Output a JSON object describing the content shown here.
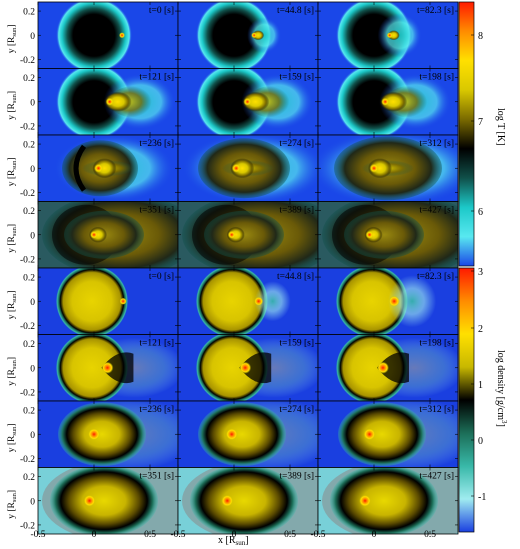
{
  "figure": {
    "xlabel_main": "x [R",
    "xlabel_sub": "sun",
    "xlabel_close": "]",
    "ylabel_main": "y [R",
    "ylabel_sub": "sun",
    "ylabel_close": "]",
    "x_ticks": [
      "-0.5",
      "0",
      "0.5"
    ],
    "y_ticks": [
      "0.2",
      "0",
      "-0.2"
    ]
  },
  "temperature_block": {
    "colorbar_label": "log T [K]",
    "colorbar_ticks": [
      "8",
      "7",
      "6"
    ],
    "panels": [
      "t=0 [s]",
      "t=44.8 [s]",
      "t=82.3 [s]",
      "t=121 [s]",
      "t=159 [s]",
      "t=198 [s]",
      "t=236 [s]",
      "t=274 [s]",
      "t=312 [s]",
      "t=351 [s]",
      "t=389 [s]",
      "t=427 [s]"
    ]
  },
  "density_block": {
    "colorbar_label": "log density [g/cm",
    "colorbar_label_sup": "3",
    "colorbar_label_close": "]",
    "colorbar_ticks": [
      "3",
      "2",
      "1",
      "0",
      "-1"
    ],
    "panels": [
      "t=0 [s]",
      "t=44.8 [s]",
      "t=82.3 [s]",
      "t=121 [s]",
      "t=159 [s]",
      "t=198 [s]",
      "t=236 [s]",
      "t=274 [s]",
      "t=312 [s]",
      "t=351 [s]",
      "t=389 [s]",
      "t=427 [s]"
    ]
  },
  "colors": {
    "temp_background": "#1a47e8",
    "dens_background": "#1a3fe0",
    "temp_scale": [
      "#ff1a00",
      "#ff8c00",
      "#ffe000",
      "#d9c800",
      "#7a6a00",
      "#000000",
      "#10504a",
      "#1cc8c8",
      "#58e8f0",
      "#1a47e8"
    ],
    "dens_scale": [
      "#ff1a00",
      "#ff8c00",
      "#ffe000",
      "#c8b800",
      "#000000",
      "#1c6e58",
      "#38b8a8",
      "#a0ecf0",
      "#1a3fe0"
    ]
  }
}
